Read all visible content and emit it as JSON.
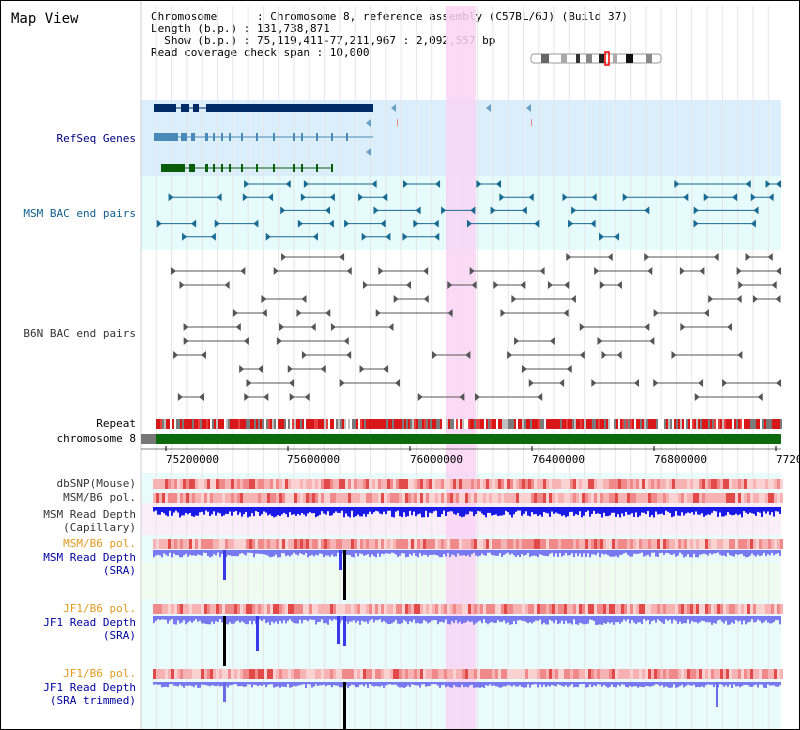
{
  "page": {
    "title": "Map View",
    "info": {
      "chromosome": "Chromosome      : Chromosome 8, reference assembly (C57BL/6J) (Build 37)",
      "length": "Length (b.p.) : 131,738,871",
      "show": "  Show (b.p.) : 75,119,411-77,211,967 : 2,092,557 bp",
      "coverage": "Read coverage check span : 10,000"
    }
  },
  "tracks": [
    {
      "label": "RefSeq Genes",
      "color": "#000080",
      "bg": "#dbeefb"
    },
    {
      "label": "MSM BAC end pairs",
      "color": "#0f5e8c",
      "bg": "#e6fbfb"
    },
    {
      "label": "B6N BAC end pairs",
      "color": "#333333",
      "bg": "#ffffff"
    },
    {
      "label": "Repeat",
      "color": "#000000"
    },
    {
      "label": "chromosome 8",
      "color": "#000000"
    },
    {
      "label": "dbSNP(Mouse)",
      "color": "#333333"
    },
    {
      "label": "MSM/B6 pol.",
      "color": "#333333"
    },
    {
      "label": "MSM Read Depth\n(Capillary)",
      "color": "#333333"
    },
    {
      "label": "MSM/B6 pol.",
      "color": "#e09a20"
    },
    {
      "label": "MSM Read Depth\n(SRA)",
      "color": "#0000a0"
    },
    {
      "label": "JF1/B6 pol.",
      "color": "#e09a20"
    },
    {
      "label": "JF1 Read Depth\n(SRA)",
      "color": "#0000a0"
    },
    {
      "label": "JF1/B6 pol.",
      "color": "#e09a20"
    },
    {
      "label": "JF1 Read Depth\n(SRA trimmed)",
      "color": "#0000a0"
    }
  ],
  "axis": {
    "ticks": [
      "75200000",
      "75600000",
      "76000000",
      "76400000",
      "76800000",
      "7720"
    ]
  },
  "colors": {
    "highlight": "#f9d4f3",
    "gene_dark": "#002b66",
    "gene_blue": "#4a8ab8",
    "gene_green": "#0a5e0a",
    "msm_pair": "#186a92",
    "b6n_pair": "#555555",
    "chromosome": "#0b6a0b",
    "depth_blue": "#1a1ae6",
    "depth_light": "#7878f0",
    "depth_black": "#000000"
  }
}
